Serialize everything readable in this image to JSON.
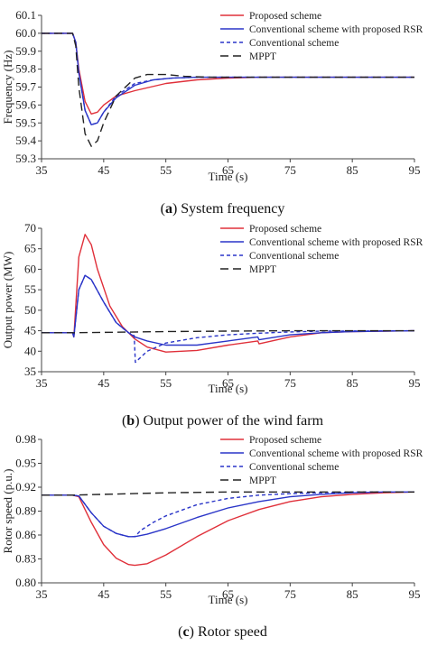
{
  "series_styles": [
    {
      "color": "#e0303a",
      "dash": "none"
    },
    {
      "color": "#2a35c8",
      "dash": "none"
    },
    {
      "color": "#2a35c8",
      "dash": "4,3"
    },
    {
      "color": "#222222",
      "dash": "9,5"
    }
  ],
  "chart_data": [
    {
      "type": "line",
      "caption_letter": "a",
      "caption_text": "System frequency",
      "xlabel": "Time (s)",
      "ylabel": "Frequency (Hz)",
      "xlim": [
        35,
        95
      ],
      "ylim": [
        59.3,
        60.1
      ],
      "xticks": [
        "35",
        "45",
        "55",
        "65",
        "75",
        "85",
        "95"
      ],
      "yticks": [
        "59.3",
        "59.4",
        "59.5",
        "59.6",
        "59.7",
        "59.8",
        "59.9",
        "60.0",
        "60.1"
      ],
      "legend": "top-right",
      "series": [
        {
          "name": "Proposed scheme",
          "x": [
            35,
            40,
            40.5,
            41,
            42,
            43,
            44,
            45,
            47,
            50,
            55,
            60,
            65,
            70,
            95
          ],
          "y": [
            60.0,
            60.0,
            59.95,
            59.8,
            59.62,
            59.55,
            59.56,
            59.6,
            59.65,
            59.68,
            59.72,
            59.74,
            59.75,
            59.755,
            59.755
          ]
        },
        {
          "name": "Conventional scheme with proposed RSR",
          "x": [
            35,
            40,
            40.5,
            41,
            42,
            43,
            44,
            45,
            47,
            50,
            53,
            56,
            60,
            65,
            95
          ],
          "y": [
            60.0,
            60.0,
            59.95,
            59.78,
            59.57,
            59.49,
            59.5,
            59.56,
            59.64,
            59.71,
            59.74,
            59.75,
            59.755,
            59.755,
            59.755
          ]
        },
        {
          "name": "Conventional scheme",
          "x": [
            35,
            40,
            40.5,
            41,
            42,
            43,
            44,
            45,
            47,
            50,
            53,
            56,
            60,
            65,
            95
          ],
          "y": [
            60.0,
            60.0,
            59.95,
            59.78,
            59.57,
            59.49,
            59.5,
            59.56,
            59.65,
            59.72,
            59.74,
            59.75,
            59.755,
            59.755,
            59.755
          ]
        },
        {
          "name": "MPPT",
          "x": [
            35,
            40,
            40.5,
            41,
            42,
            43,
            44,
            45,
            47,
            50,
            52,
            55,
            58,
            62,
            95
          ],
          "y": [
            60.0,
            60.0,
            59.93,
            59.7,
            59.44,
            59.37,
            59.4,
            59.5,
            59.65,
            59.75,
            59.77,
            59.77,
            59.76,
            59.755,
            59.755
          ]
        }
      ]
    },
    {
      "type": "line",
      "caption_letter": "b",
      "caption_text": "Output power of the wind farm",
      "xlabel": "Time (s)",
      "ylabel": "Output power (MW)",
      "xlim": [
        35,
        95
      ],
      "ylim": [
        35,
        70
      ],
      "xticks": [
        "35",
        "45",
        "55",
        "65",
        "75",
        "85",
        "95"
      ],
      "yticks": [
        "35",
        "40",
        "45",
        "50",
        "55",
        "60",
        "65",
        "70"
      ],
      "legend": "top-right",
      "series": [
        {
          "name": "Proposed scheme",
          "x": [
            35,
            40,
            40.2,
            41,
            42,
            43,
            44,
            46,
            48,
            50,
            52,
            55,
            60,
            65,
            69.8,
            70,
            75,
            80,
            85,
            95
          ],
          "y": [
            44.5,
            44.5,
            43.5,
            63,
            68.5,
            66,
            60,
            51,
            46,
            43,
            41,
            39.8,
            40.2,
            41.5,
            42.5,
            41.8,
            43.5,
            44.5,
            44.8,
            45
          ]
        },
        {
          "name": "Conventional scheme with proposed RSR",
          "x": [
            35,
            40,
            40.2,
            41,
            42,
            43,
            45,
            47,
            49,
            50,
            52,
            55,
            60,
            65,
            69.8,
            70,
            75,
            80,
            85,
            95
          ],
          "y": [
            44.5,
            44.5,
            43.5,
            55,
            58.5,
            57.5,
            52,
            47,
            44.5,
            43.5,
            42.5,
            41.5,
            41.5,
            42.5,
            43.5,
            42.8,
            44,
            44.5,
            44.8,
            45
          ]
        },
        {
          "name": "Conventional scheme",
          "x": [
            35,
            40,
            40.2,
            41,
            42,
            43,
            45,
            47,
            49,
            49.9,
            50.1,
            52,
            55,
            60,
            65,
            70,
            75,
            80,
            95
          ],
          "y": [
            44.5,
            44.5,
            43.5,
            55,
            58.5,
            57.5,
            52,
            47,
            44.5,
            43.8,
            37.3,
            40,
            42,
            43.3,
            44,
            44.4,
            44.7,
            44.9,
            45
          ]
        },
        {
          "name": "MPPT",
          "x": [
            35,
            40,
            45,
            55,
            65,
            75,
            85,
            95
          ],
          "y": [
            44.5,
            44.5,
            44.6,
            44.8,
            44.9,
            45,
            45,
            45
          ]
        }
      ]
    },
    {
      "type": "line",
      "caption_letter": "c",
      "caption_text": "Rotor speed",
      "xlabel": "Time (s)",
      "ylabel": "Rotor speed (p.u.)",
      "xlim": [
        35,
        95
      ],
      "ylim": [
        0.8,
        0.98
      ],
      "xticks": [
        "35",
        "45",
        "55",
        "65",
        "75",
        "85",
        "95"
      ],
      "yticks": [
        "0.80",
        "0.83",
        "0.86",
        "0.89",
        "0.92",
        "0.95",
        "0.98"
      ],
      "legend": "top-right",
      "series": [
        {
          "name": "Proposed scheme",
          "x": [
            35,
            40,
            41,
            43,
            45,
            47,
            49,
            50,
            52,
            55,
            60,
            65,
            70,
            75,
            80,
            85,
            90,
            95
          ],
          "y": [
            0.91,
            0.91,
            0.908,
            0.876,
            0.848,
            0.831,
            0.823,
            0.822,
            0.824,
            0.835,
            0.858,
            0.878,
            0.892,
            0.902,
            0.908,
            0.911,
            0.913,
            0.914
          ]
        },
        {
          "name": "Conventional scheme with proposed RSR",
          "x": [
            35,
            40,
            41,
            43,
            45,
            47,
            49,
            50,
            52,
            55,
            60,
            65,
            70,
            75,
            80,
            85,
            90,
            95
          ],
          "y": [
            0.91,
            0.91,
            0.909,
            0.888,
            0.871,
            0.862,
            0.858,
            0.858,
            0.861,
            0.868,
            0.882,
            0.894,
            0.902,
            0.908,
            0.911,
            0.913,
            0.914,
            0.914
          ]
        },
        {
          "name": "Conventional scheme",
          "x": [
            35,
            40,
            41,
            43,
            45,
            47,
            49,
            50,
            51,
            53,
            55,
            60,
            65,
            70,
            75,
            80,
            85,
            90,
            95
          ],
          "y": [
            0.91,
            0.91,
            0.909,
            0.888,
            0.871,
            0.862,
            0.858,
            0.858,
            0.866,
            0.876,
            0.884,
            0.898,
            0.906,
            0.91,
            0.912,
            0.913,
            0.914,
            0.914,
            0.914
          ]
        },
        {
          "name": "MPPT",
          "x": [
            35,
            40,
            45,
            55,
            65,
            75,
            85,
            95
          ],
          "y": [
            0.91,
            0.91,
            0.911,
            0.913,
            0.914,
            0.914,
            0.914,
            0.914
          ]
        }
      ]
    }
  ]
}
